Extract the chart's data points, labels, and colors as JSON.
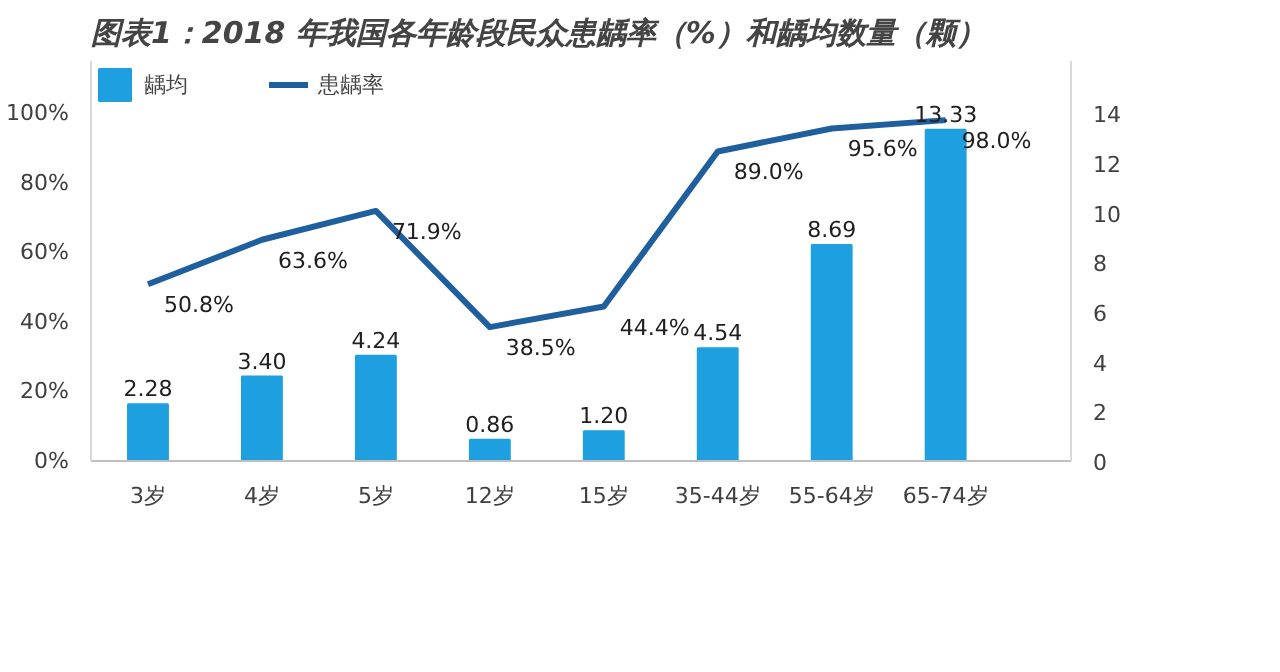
{
  "chart_data": {
    "type": "bar",
    "title": "图表1：2018 年我国各年龄段民众患龋率（%）和龋均数量（颗）",
    "categories": [
      "3岁",
      "4岁",
      "5岁",
      "12岁",
      "15岁",
      "35-44岁",
      "55-64岁",
      "65-74岁"
    ],
    "series": [
      {
        "name": "龋均",
        "axis": "y2",
        "color": "#1ea0e0",
        "values": [
          2.28,
          3.4,
          4.24,
          0.86,
          1.2,
          4.54,
          8.69,
          13.33
        ],
        "value_labels": [
          "2.28",
          "3.40",
          "4.24",
          "0.86",
          "1.20",
          "4.54",
          "8.69",
          "13.33"
        ]
      },
      {
        "name": "患龋率",
        "type": "line",
        "axis": "y",
        "color": "#1f5f9e",
        "values": [
          50.8,
          63.6,
          71.9,
          38.5,
          44.4,
          89.0,
          95.6,
          98.0
        ],
        "value_labels": [
          "50.8%",
          "63.6%",
          "71.9%",
          "38.5%",
          "44.4%",
          "89.0%",
          "95.6%",
          "98.0%"
        ]
      }
    ],
    "ylim": [
      0,
      115
    ],
    "yticks": [
      {
        "value": 0,
        "label": "0%"
      },
      {
        "value": 20,
        "label": "20%"
      },
      {
        "value": 40,
        "label": "40%"
      },
      {
        "value": 60,
        "label": "60%"
      },
      {
        "value": 80,
        "label": "80%"
      },
      {
        "value": 100,
        "label": "100%"
      }
    ],
    "y2lim": [
      0,
      16.1
    ],
    "y2ticks": [
      0,
      2,
      4,
      6,
      8,
      10,
      12,
      14
    ],
    "grid": false,
    "legend": "top left",
    "marker": "none",
    "line_style": "solid"
  }
}
